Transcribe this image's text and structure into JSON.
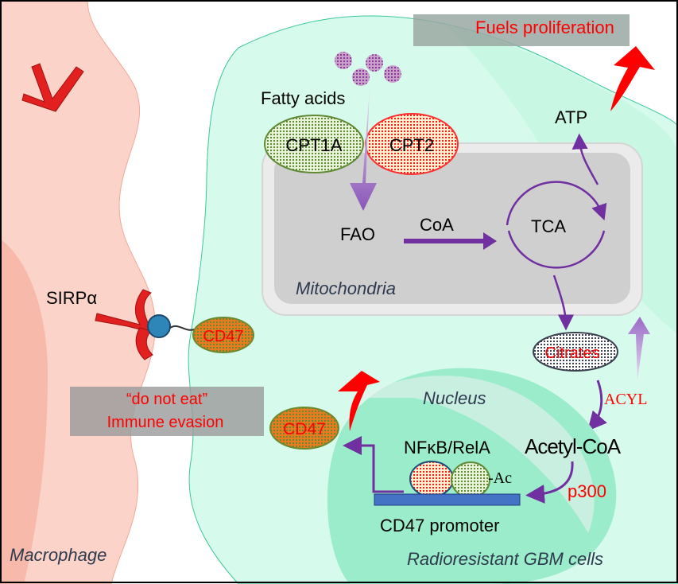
{
  "labels": {
    "fuels_proliferation": "Fuels proliferation",
    "fatty_acids": "Fatty acids",
    "cpt1a": "CPT1A",
    "cpt2": "CPT2",
    "atp": "ATP",
    "fao": "FAO",
    "coa": "CoA",
    "tca": "TCA",
    "mitochondria": "Mitochondria",
    "sirpa": "SIRPα",
    "cd47_membrane": "CD47",
    "citrates": "Citrates",
    "do_not_eat": "“do not eat”",
    "immune_evasion": "Immune evasion",
    "nucleus": "Nucleus",
    "acyl": "ACYL",
    "cd47_secreted": "CD47",
    "nfkb_rela": "NFκB/RelA",
    "ac": "-Ac",
    "acetyl_coa": "Acetyl-CoA",
    "p300": "p300",
    "cd47_promoter": "CD47 promoter",
    "macrophage": "Macrophage",
    "gbm_cells": "Radioresistant GBM cells"
  },
  "colors": {
    "macrophage": "#fbd3c8",
    "cell": "#d6fbec",
    "nucleus": "#9beccb",
    "mitochondria": "#cfcfcf",
    "arrow": "#7030a0",
    "highlight": "#ff0000",
    "promoter": "#4472c4"
  }
}
